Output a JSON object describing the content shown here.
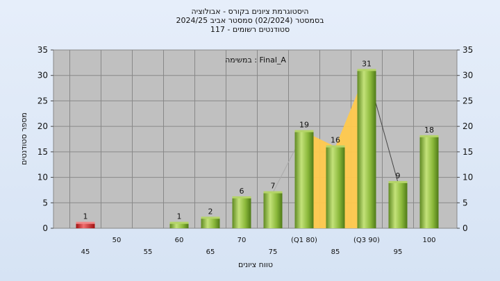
{
  "chart_data": {
    "type": "bar",
    "title_lines": [
      "היסטוגרמת ציונים בקורס - אבולוציה",
      "בסמסטר  (02/2024)  סמסטר אביב 2024/25",
      "סטודנטים רשומים - 117"
    ],
    "annotation": "במשימה : Final_A",
    "xlabel": "טווח ציונים",
    "ylabel": "מספר סטודנטים",
    "ylim": [
      0,
      35
    ],
    "yticks": [
      0,
      5,
      10,
      15,
      20,
      25,
      30,
      35
    ],
    "categories": [
      "45",
      "50",
      "55",
      "60",
      "65",
      "70",
      "75",
      "(Q1 80)",
      "85",
      "(Q3 90)",
      "95",
      "100"
    ],
    "values": [
      1,
      0,
      0,
      1,
      2,
      6,
      7,
      19,
      16,
      31,
      9,
      18
    ],
    "data_labels": [
      "1",
      "",
      "",
      "1",
      "2",
      "6",
      "7",
      "19",
      "16",
      "31",
      "9",
      "18"
    ],
    "iqr_band": {
      "from_category": "(Q1 80)",
      "to_category": "(Q3 90)",
      "color": "#ffc94d"
    },
    "colors": {
      "failing_bar": "#d42a2a",
      "passing_bar": "#8ab83a",
      "plot_bg": "#c0c0c0"
    }
  }
}
